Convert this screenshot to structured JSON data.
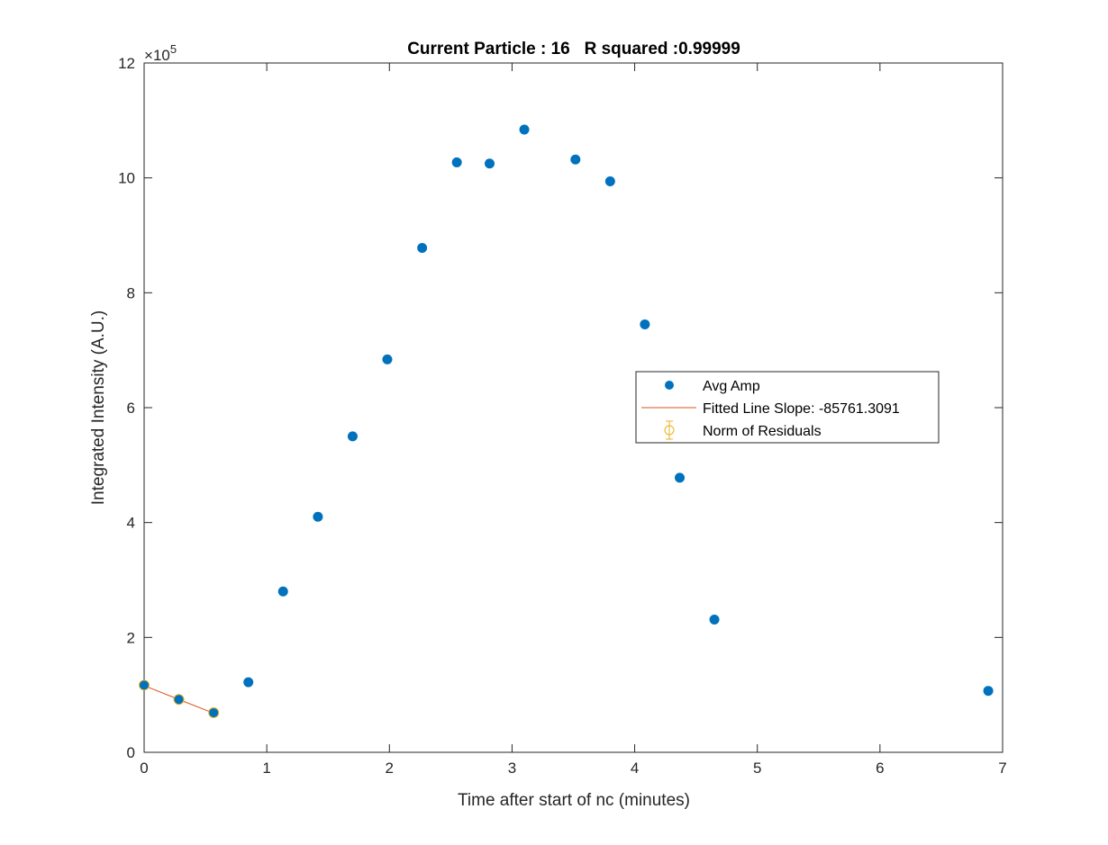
{
  "chart_data": {
    "type": "scatter",
    "title": "Current Particle : 16   R squared :0.99999",
    "xlabel": "Time after start of nc (minutes)",
    "ylabel": "Integrated Intensity (A.U.)",
    "xlim": [
      0,
      7
    ],
    "ylim": [
      0,
      1200000
    ],
    "xticks": [
      0,
      1,
      2,
      3,
      4,
      5,
      6,
      7
    ],
    "yticks": [
      0,
      2,
      4,
      6,
      8,
      10,
      12
    ],
    "y_exponent_base": "10",
    "y_exponent_power": "5",
    "grid": false,
    "legend_position": "center-right",
    "series": [
      {
        "name": "Avg Amp",
        "kind": "scatter",
        "color": "#0072BD",
        "x": [
          0,
          0.283,
          0.567,
          0.85,
          1.133,
          1.417,
          1.7,
          1.983,
          2.267,
          2.55,
          2.817,
          3.1,
          3.517,
          3.8,
          4.083,
          4.367,
          4.65,
          6.883
        ],
        "y": [
          117000,
          92000,
          69000,
          122000,
          280000,
          410000,
          550000,
          684000,
          878000,
          1027000,
          1025000,
          1084000,
          1032000,
          994000,
          745000,
          478000,
          231000,
          107000
        ]
      },
      {
        "name": "Fitted Line Slope: -85761.3091",
        "kind": "line",
        "color": "#D95319",
        "x": [
          0,
          0.283,
          0.567
        ],
        "y": [
          116000,
          92000,
          68000
        ]
      },
      {
        "name": "Norm of Residuals",
        "kind": "errorbar",
        "color": "#EDB120",
        "x": [
          0,
          0.283,
          0.567
        ],
        "y": [
          117000,
          92000,
          69000
        ]
      }
    ]
  }
}
